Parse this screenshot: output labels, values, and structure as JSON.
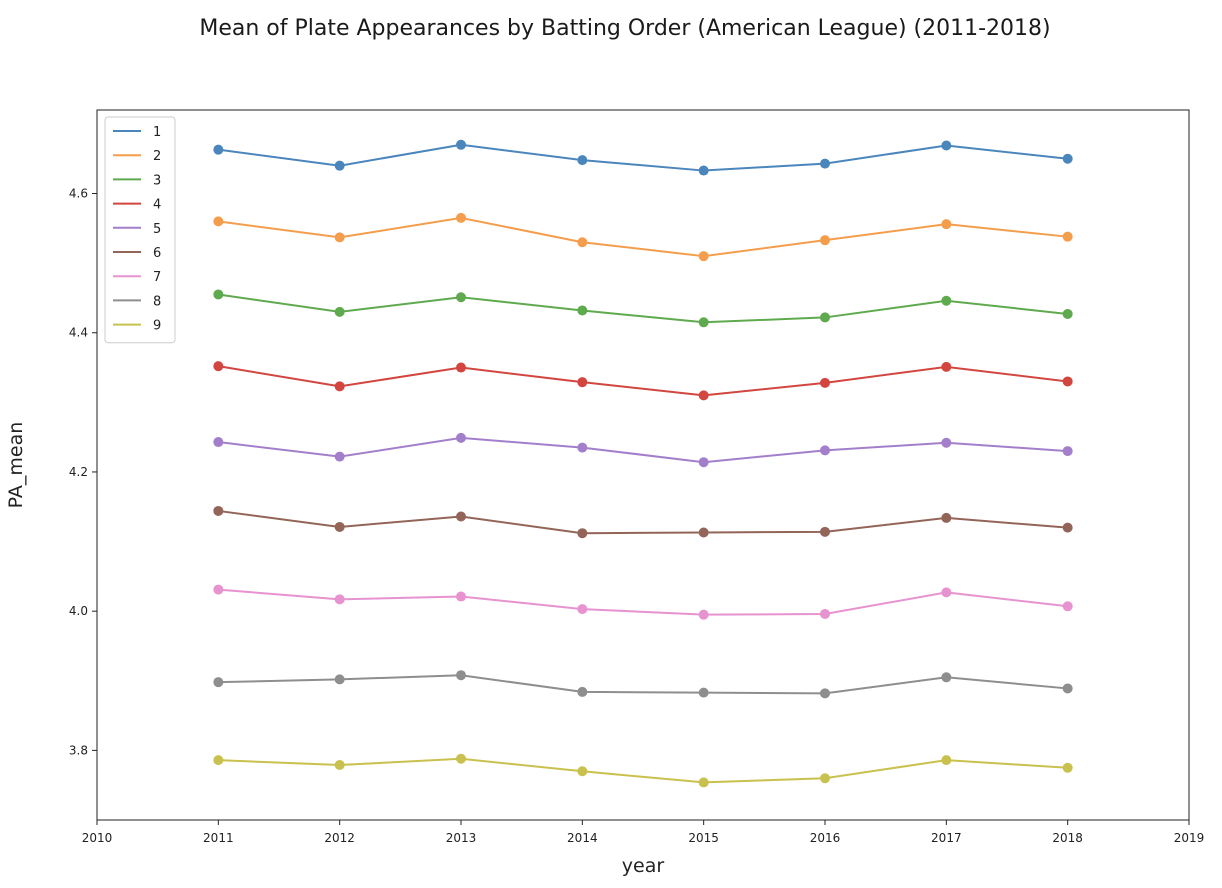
{
  "chart_data": {
    "type": "line",
    "title": "Mean of Plate Appearances by Batting Order (American League) (2011-2018)",
    "xlabel": "year",
    "ylabel": "PA_mean",
    "xlim": [
      2010,
      2019
    ],
    "ylim": [
      3.7,
      4.72
    ],
    "x_ticks": [
      2010,
      2011,
      2012,
      2013,
      2014,
      2015,
      2016,
      2017,
      2018,
      2019
    ],
    "y_ticks": [
      3.8,
      4.0,
      4.2,
      4.4,
      4.6
    ],
    "grid": false,
    "legend_position": "top-left",
    "x": [
      2011,
      2012,
      2013,
      2014,
      2015,
      2016,
      2017,
      2018
    ],
    "series": [
      {
        "name": "1",
        "color": "#4a86bc",
        "values": [
          4.663,
          4.64,
          4.67,
          4.648,
          4.633,
          4.643,
          4.669,
          4.65
        ]
      },
      {
        "name": "2",
        "color": "#f49d4c",
        "values": [
          4.56,
          4.537,
          4.565,
          4.53,
          4.51,
          4.533,
          4.556,
          4.538
        ]
      },
      {
        "name": "3",
        "color": "#5faa4e",
        "values": [
          4.455,
          4.43,
          4.451,
          4.432,
          4.415,
          4.422,
          4.446,
          4.427
        ]
      },
      {
        "name": "4",
        "color": "#d2463f",
        "values": [
          4.352,
          4.323,
          4.35,
          4.329,
          4.31,
          4.328,
          4.351,
          4.33
        ]
      },
      {
        "name": "5",
        "color": "#a37fcb",
        "values": [
          4.243,
          4.222,
          4.249,
          4.235,
          4.214,
          4.231,
          4.242,
          4.23
        ]
      },
      {
        "name": "6",
        "color": "#936558",
        "values": [
          4.144,
          4.121,
          4.136,
          4.112,
          4.113,
          4.114,
          4.134,
          4.12
        ]
      },
      {
        "name": "7",
        "color": "#e693cf",
        "values": [
          4.031,
          4.017,
          4.021,
          4.003,
          3.995,
          3.996,
          4.027,
          4.007
        ]
      },
      {
        "name": "8",
        "color": "#8e8e8e",
        "values": [
          3.898,
          3.902,
          3.908,
          3.884,
          3.883,
          3.882,
          3.905,
          3.889
        ]
      },
      {
        "name": "9",
        "color": "#c9c14d",
        "values": [
          3.786,
          3.779,
          3.788,
          3.77,
          3.754,
          3.76,
          3.786,
          3.775
        ]
      }
    ]
  }
}
